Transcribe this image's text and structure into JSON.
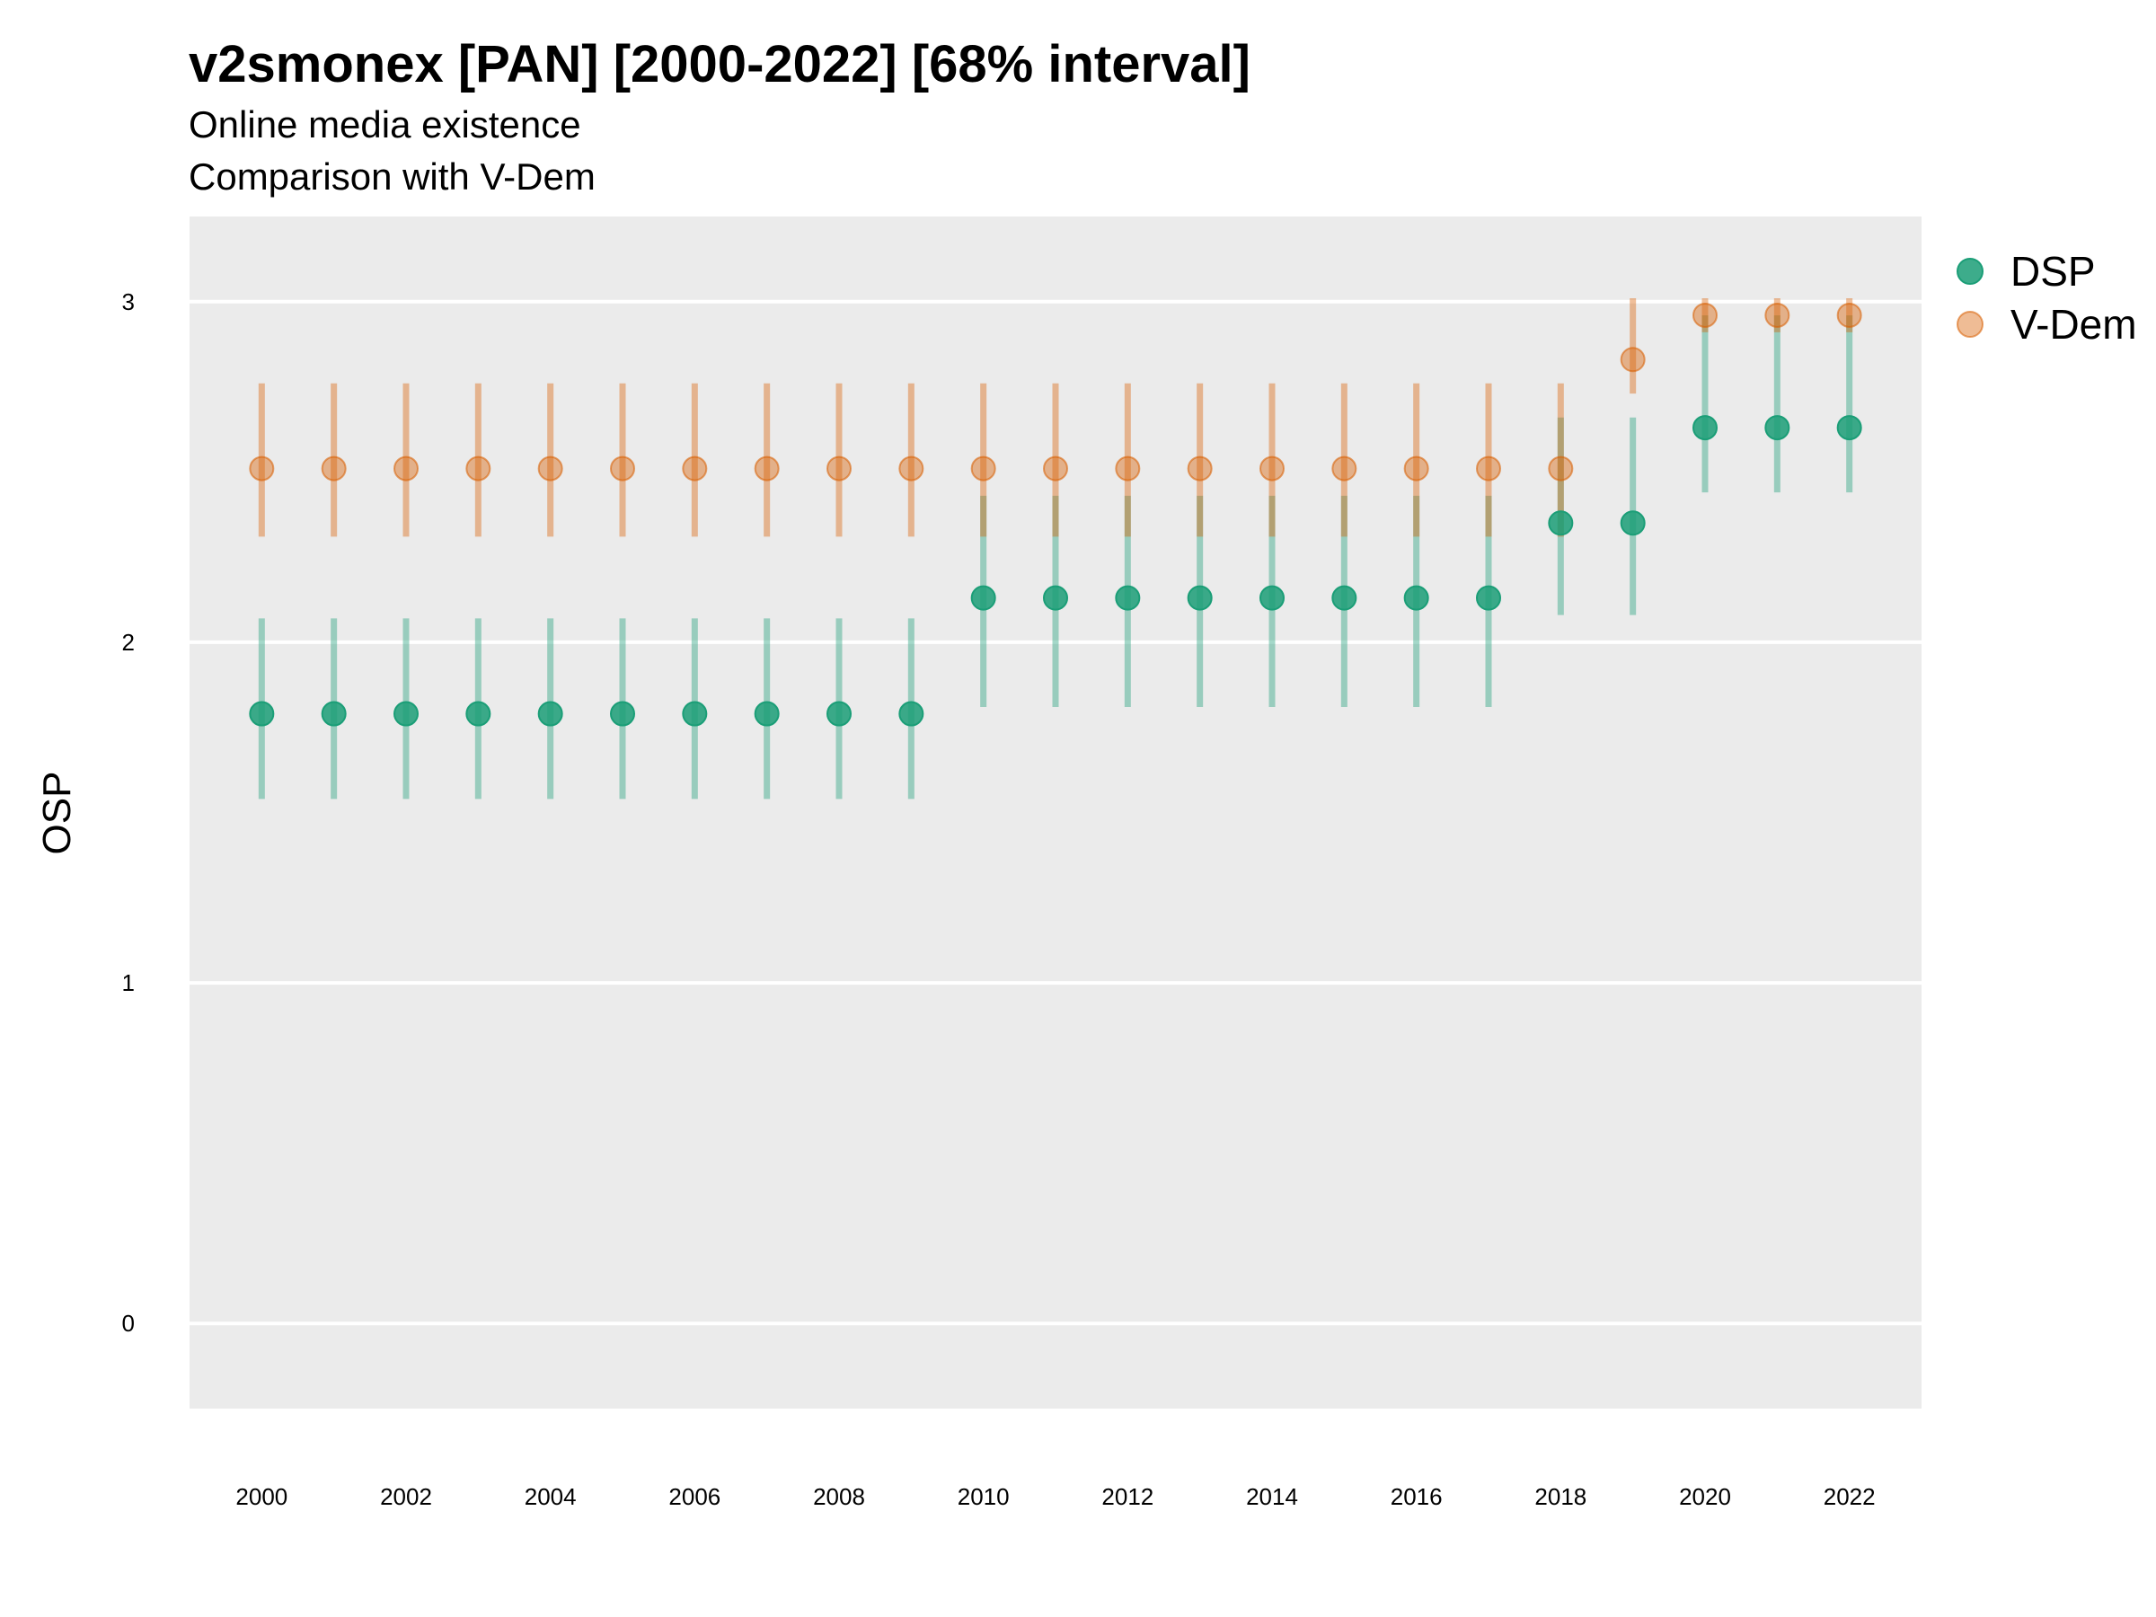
{
  "chart_data": {
    "type": "scatter",
    "title": "v2smonex [PAN] [2000-2022] [68% interval]",
    "subtitle": "Online media existence",
    "caption": "Comparison with V-Dem",
    "ylabel": "OSP",
    "xlabel": "",
    "ylim": [
      -0.25,
      3.25
    ],
    "xlim": [
      1999,
      2023
    ],
    "y_ticks": [
      0,
      1,
      2,
      3
    ],
    "x_ticks": [
      2000,
      2002,
      2004,
      2006,
      2008,
      2010,
      2012,
      2014,
      2016,
      2018,
      2020,
      2022
    ],
    "grid": true,
    "legend_position": "right",
    "x": [
      2000,
      2001,
      2002,
      2003,
      2004,
      2005,
      2006,
      2007,
      2008,
      2009,
      2010,
      2011,
      2012,
      2013,
      2014,
      2015,
      2016,
      2017,
      2018,
      2019,
      2020,
      2021,
      2022
    ],
    "series": [
      {
        "name": "DSP",
        "color": "#1b9e77",
        "values": [
          1.79,
          1.79,
          1.79,
          1.79,
          1.79,
          1.79,
          1.79,
          1.79,
          1.79,
          1.79,
          2.13,
          2.13,
          2.13,
          2.13,
          2.13,
          2.13,
          2.13,
          2.13,
          2.35,
          2.35,
          2.63,
          2.63,
          2.63
        ],
        "lower": [
          1.54,
          1.54,
          1.54,
          1.54,
          1.54,
          1.54,
          1.54,
          1.54,
          1.54,
          1.54,
          1.81,
          1.81,
          1.81,
          1.81,
          1.81,
          1.81,
          1.81,
          1.81,
          2.08,
          2.08,
          2.44,
          2.44,
          2.44
        ],
        "upper": [
          2.07,
          2.07,
          2.07,
          2.07,
          2.07,
          2.07,
          2.07,
          2.07,
          2.07,
          2.07,
          2.43,
          2.43,
          2.43,
          2.43,
          2.43,
          2.43,
          2.43,
          2.43,
          2.66,
          2.66,
          2.96,
          2.96,
          2.96
        ]
      },
      {
        "name": "V-Dem",
        "color": "#d95f02",
        "values": [
          2.51,
          2.51,
          2.51,
          2.51,
          2.51,
          2.51,
          2.51,
          2.51,
          2.51,
          2.51,
          2.51,
          2.51,
          2.51,
          2.51,
          2.51,
          2.51,
          2.51,
          2.51,
          2.51,
          2.83,
          2.96,
          2.96,
          2.96
        ],
        "lower": [
          2.31,
          2.31,
          2.31,
          2.31,
          2.31,
          2.31,
          2.31,
          2.31,
          2.31,
          2.31,
          2.31,
          2.31,
          2.31,
          2.31,
          2.31,
          2.31,
          2.31,
          2.31,
          2.31,
          2.73,
          2.91,
          2.91,
          2.91
        ],
        "upper": [
          2.76,
          2.76,
          2.76,
          2.76,
          2.76,
          2.76,
          2.76,
          2.76,
          2.76,
          2.76,
          2.76,
          2.76,
          2.76,
          2.76,
          2.76,
          2.76,
          2.76,
          2.76,
          2.76,
          3.01,
          3.01,
          3.01,
          3.01
        ]
      }
    ]
  }
}
